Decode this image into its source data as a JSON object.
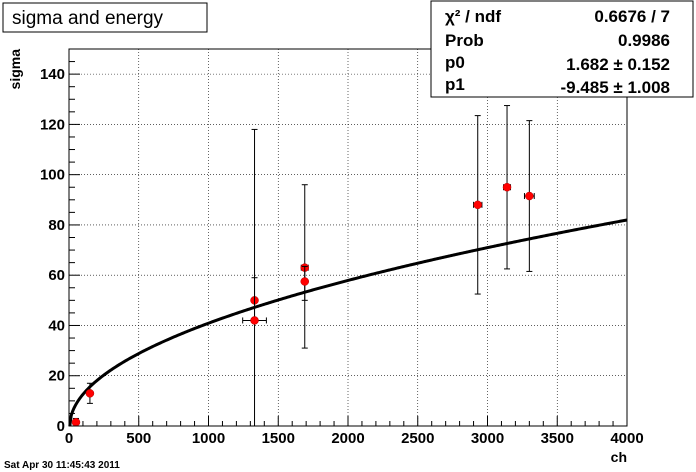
{
  "title_box": {
    "text": "sigma and energy"
  },
  "stats": [
    {
      "label": "χ² / ndf",
      "value": "0.6676 / 7"
    },
    {
      "label": "Prob",
      "value": "0.9986"
    },
    {
      "label": "p0",
      "value": "1.682 ± 0.152"
    },
    {
      "label": "p1",
      "value": "-9.485 ± 1.008"
    }
  ],
  "footer": {
    "timestamp": "Sat Apr 30 11:45:43 2011"
  },
  "colors": {
    "marker": "#ff0000",
    "line": "#000000",
    "grid": "#000000"
  },
  "chart_data": {
    "type": "scatter",
    "title": "sigma and energy",
    "xlabel": "ch",
    "ylabel": "sigma",
    "xlim": [
      0,
      4000
    ],
    "ylim": [
      0,
      150
    ],
    "grid": true,
    "xticks": [
      0,
      500,
      1000,
      1500,
      2000,
      2500,
      3000,
      3500,
      4000
    ],
    "yticks": [
      0,
      20,
      40,
      60,
      80,
      100,
      120,
      140
    ],
    "points": [
      {
        "x": 50,
        "y": 1.5,
        "yerr_lo": 1.5,
        "yerr_hi": 1.5,
        "xerr": 0
      },
      {
        "x": 150,
        "y": 13,
        "yerr_lo": 4,
        "yerr_hi": 4,
        "xerr": 0
      },
      {
        "x": 1330,
        "y": 50,
        "yerr_lo": 8,
        "yerr_hi": 9,
        "xerr": 0
      },
      {
        "x": 1330,
        "y": 42,
        "yerr_lo": 42,
        "yerr_hi": 76,
        "xerr": 85
      },
      {
        "x": 1690,
        "y": 63,
        "yerr_lo": 13,
        "yerr_hi": 33,
        "xerr": 25
      },
      {
        "x": 1690,
        "y": 57.5,
        "yerr_lo": 26.5,
        "yerr_hi": 6,
        "xerr": 0
      },
      {
        "x": 2930,
        "y": 88,
        "yerr_lo": 35.5,
        "yerr_hi": 35.5,
        "xerr": 30
      },
      {
        "x": 3140,
        "y": 95,
        "yerr_lo": 32.5,
        "yerr_hi": 32.5,
        "xerr": 25
      },
      {
        "x": 3300,
        "y": 91.5,
        "yerr_lo": 30,
        "yerr_hi": 30,
        "xerr": 35
      }
    ],
    "fit": {
      "p0": 1.682,
      "p1": -9.485,
      "x_range": [
        0,
        4000
      ]
    }
  }
}
